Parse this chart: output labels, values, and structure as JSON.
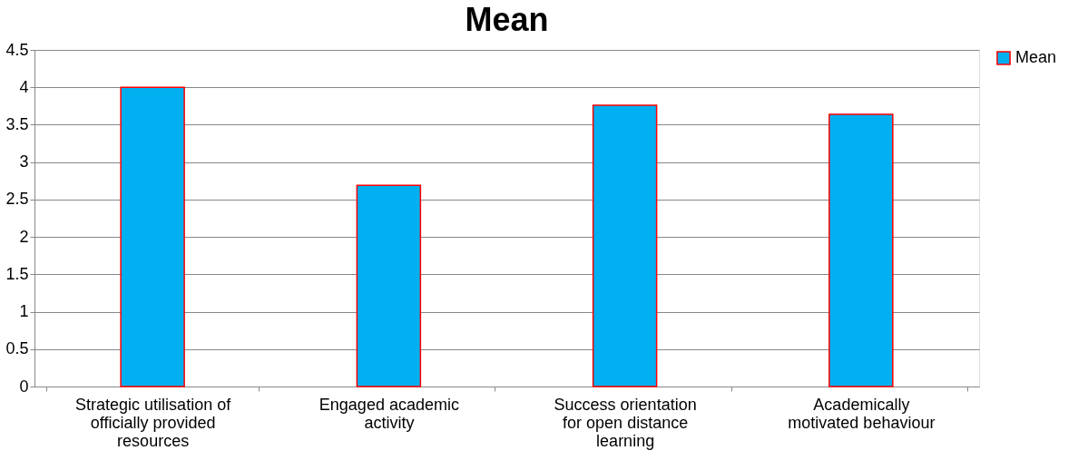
{
  "chart_data": {
    "type": "bar",
    "title": "Mean",
    "categories": [
      "Strategic utilisation of\nofficially provided\nresources",
      "Engaged academic\nactivity",
      "Success orientation\nfor open distance\nlearning",
      "Academically\nmotivated behaviour"
    ],
    "series": [
      {
        "name": "Mean",
        "color": "#00b0f0",
        "values": [
          4.0,
          2.69,
          3.76,
          3.64
        ]
      }
    ],
    "ylim": [
      0,
      4.5
    ],
    "yticks": [
      0,
      0.5,
      1,
      1.5,
      2,
      2.5,
      3,
      3.5,
      4,
      4.5
    ],
    "grid": "y",
    "legend": "right"
  }
}
